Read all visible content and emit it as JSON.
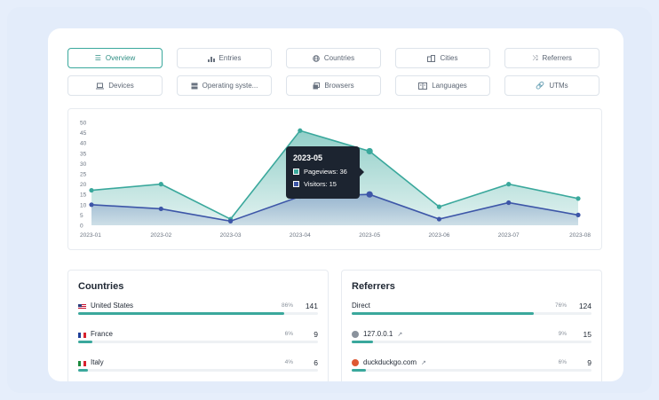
{
  "tabs": [
    {
      "label": "Overview",
      "icon": "list-icon",
      "active": true
    },
    {
      "label": "Entries",
      "icon": "bar-chart-icon",
      "active": false
    },
    {
      "label": "Countries",
      "icon": "globe-icon",
      "active": false
    },
    {
      "label": "Cities",
      "icon": "buildings-icon",
      "active": false
    },
    {
      "label": "Referrers",
      "icon": "shuffle-icon",
      "active": false
    },
    {
      "label": "Devices",
      "icon": "laptop-icon",
      "active": false
    },
    {
      "label": "Operating syste...",
      "icon": "server-icon",
      "active": false
    },
    {
      "label": "Browsers",
      "icon": "browser-windows-icon",
      "active": false
    },
    {
      "label": "Languages",
      "icon": "language-icon",
      "active": false
    },
    {
      "label": "UTMs",
      "icon": "link-icon",
      "active": false
    }
  ],
  "chart_data": {
    "type": "area",
    "x": [
      "2023-01",
      "2023-02",
      "2023-03",
      "2023-04",
      "2023-05",
      "2023-06",
      "2023-07",
      "2023-08"
    ],
    "series": [
      {
        "name": "Pageviews",
        "values": [
          17,
          20,
          3,
          46,
          36,
          9,
          20,
          13
        ],
        "color": "#3aa89c"
      },
      {
        "name": "Visitors",
        "values": [
          10,
          8,
          2,
          14,
          15,
          3,
          11,
          5
        ],
        "color": "#3d56a8"
      }
    ],
    "yticks": [
      0,
      5,
      10,
      15,
      20,
      25,
      30,
      35,
      40,
      45,
      50
    ],
    "ylim": [
      0,
      50
    ],
    "grid": false,
    "highlight_index": 4
  },
  "tooltip": {
    "title": "2023-05",
    "pageviews_label": "Pageviews:",
    "pageviews_value": "36",
    "visitors_label": "Visitors:",
    "visitors_value": "15"
  },
  "countries": {
    "title": "Countries",
    "rows": [
      {
        "name": "United States",
        "pct": "86%",
        "fraction": 0.86,
        "count": "141",
        "flag": "us"
      },
      {
        "name": "France",
        "pct": "6%",
        "fraction": 0.06,
        "count": "9",
        "flag": "fr"
      },
      {
        "name": "Italy",
        "pct": "4%",
        "fraction": 0.04,
        "count": "6",
        "flag": "it"
      }
    ]
  },
  "referrers": {
    "title": "Referrers",
    "rows": [
      {
        "name": "Direct",
        "pct": "76%",
        "fraction": 0.76,
        "count": "124",
        "icon": "",
        "external": false
      },
      {
        "name": "127.0.0.1",
        "pct": "9%",
        "fraction": 0.09,
        "count": "15",
        "icon": "localhost-icon",
        "external": true
      },
      {
        "name": "duckduckgo.com",
        "pct": "6%",
        "fraction": 0.06,
        "count": "9",
        "icon": "duckduckgo-icon",
        "external": true
      }
    ]
  },
  "colors": {
    "accent": "#3aa89c",
    "secondary": "#3d56a8"
  }
}
